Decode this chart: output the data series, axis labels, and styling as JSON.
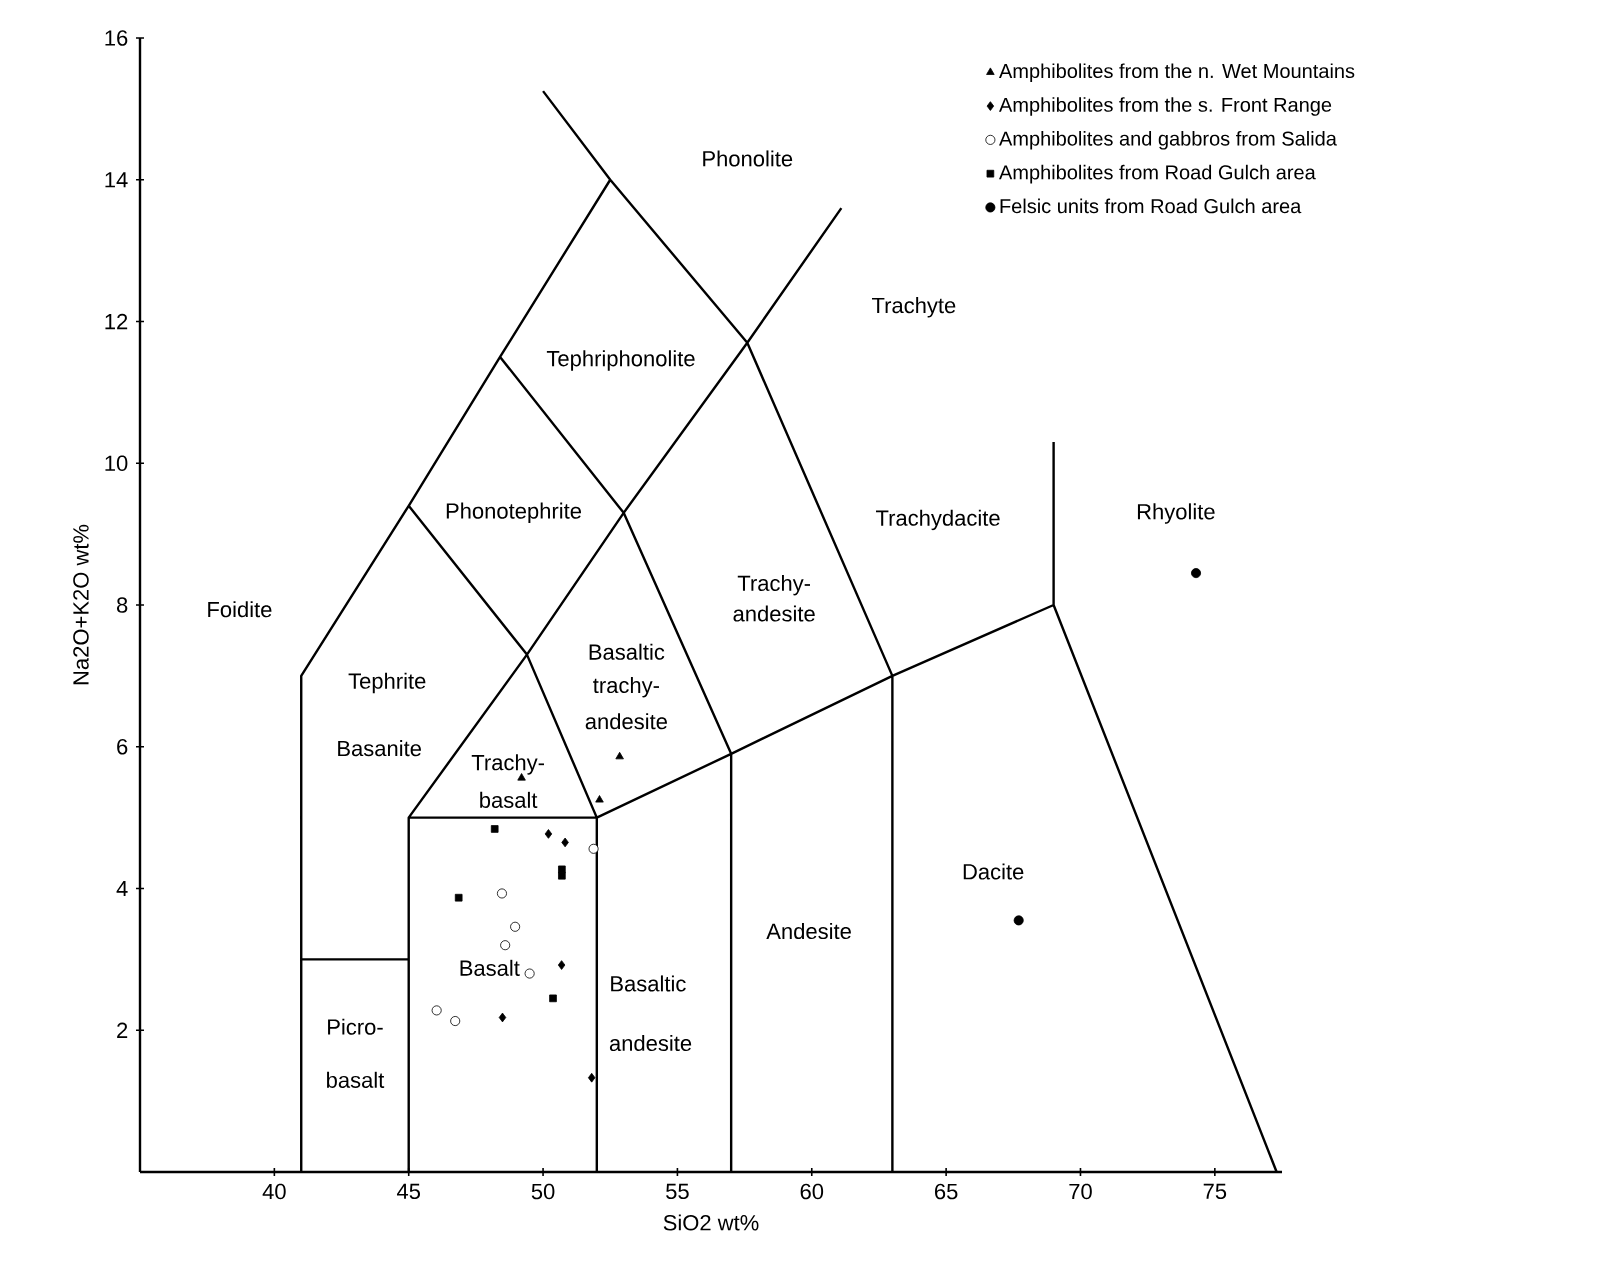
{
  "chart_data": {
    "type": "scatter",
    "xlabel": "SiO2 wt%",
    "ylabel": "Na2O+K2O wt%",
    "xlim": [
      35,
      77.5
    ],
    "ylim": [
      0,
      16
    ],
    "xticks": [
      40,
      45,
      50,
      55,
      60,
      65,
      70,
      75
    ],
    "yticks": [
      2,
      4,
      6,
      8,
      10,
      12,
      14,
      16
    ],
    "grid": false,
    "legend": "top right",
    "series": [
      {
        "name": "Amphibolites from the n. Wet Mountains",
        "marker": "triangle",
        "color": "#000000",
        "x": [
          52.85,
          52.1,
          49.2
        ],
        "values": [
          5.86,
          5.25,
          5.56
        ]
      },
      {
        "name": "Amphibolites from the s. Front Range",
        "marker": "diamond",
        "color": "#000000",
        "x": [
          50.2,
          50.82,
          50.69,
          48.49,
          51.81
        ],
        "values": [
          4.77,
          4.65,
          2.92,
          2.18,
          1.33
        ]
      },
      {
        "name": "Amphibolites and gabbros from Salida",
        "marker": "circle",
        "color": "#ffffff",
        "x": [
          51.88,
          48.47,
          48.96,
          48.59,
          49.5,
          46.04,
          46.73
        ],
        "values": [
          4.56,
          3.93,
          3.46,
          3.2,
          2.8,
          2.28,
          2.13
        ]
      },
      {
        "name": "Amphibolites from Road Gulch area",
        "marker": "square",
        "color": "#000000",
        "x": [
          48.2,
          50.7,
          50.7,
          50.37,
          46.86
        ],
        "values": [
          4.84,
          4.27,
          4.18,
          2.45,
          3.87
        ]
      },
      {
        "name": "Felsic units from Road Gulch area",
        "marker": "circle",
        "color": "#000000",
        "x": [
          74.3,
          67.7
        ],
        "values": [
          8.45,
          3.55
        ]
      },
      {
        "type": "line",
        "marker": "none",
        "line_style": "solid",
        "color": "#000000",
        "x": [
          41,
          41,
          45,
          48.4,
          52.5,
          57.6,
          63,
          69,
          77.3,
          null,
          50,
          52.5,
          null,
          57.6,
          61.1,
          null,
          45,
          49.4,
          53,
          57.6,
          null,
          48.4,
          53,
          57,
          57,
          null,
          45,
          45,
          52,
          57,
          63,
          63,
          null,
          45,
          49.4,
          52,
          52,
          null,
          41,
          45,
          null,
          69,
          69
        ],
        "values": [
          0,
          7,
          9.4,
          11.5,
          14,
          11.7,
          7,
          8,
          0,
          null,
          15.25,
          14,
          null,
          11.7,
          13.6,
          null,
          9.4,
          7.3,
          9.3,
          11.7,
          null,
          11.5,
          9.3,
          5.9,
          0,
          null,
          0,
          5,
          5,
          5.9,
          7,
          0,
          null,
          5,
          7.3,
          5,
          0,
          null,
          3,
          3,
          null,
          8,
          10.3
        ]
      }
    ],
    "annotations": [
      "Phonolite",
      "Trachyte",
      "Tephriphonolite",
      "Phonotephrite",
      "Trachy-",
      "andesite",
      "Trachydacite",
      "Rhyolite",
      "Foidite",
      "Tephrite",
      "Basanite",
      "Basaltic",
      "trachy-",
      "andesite",
      "Trachy-",
      "basalt",
      "Basalt",
      "Basaltic",
      "andesite",
      "Andesite",
      "Dacite",
      "Picro-",
      "basalt"
    ]
  }
}
